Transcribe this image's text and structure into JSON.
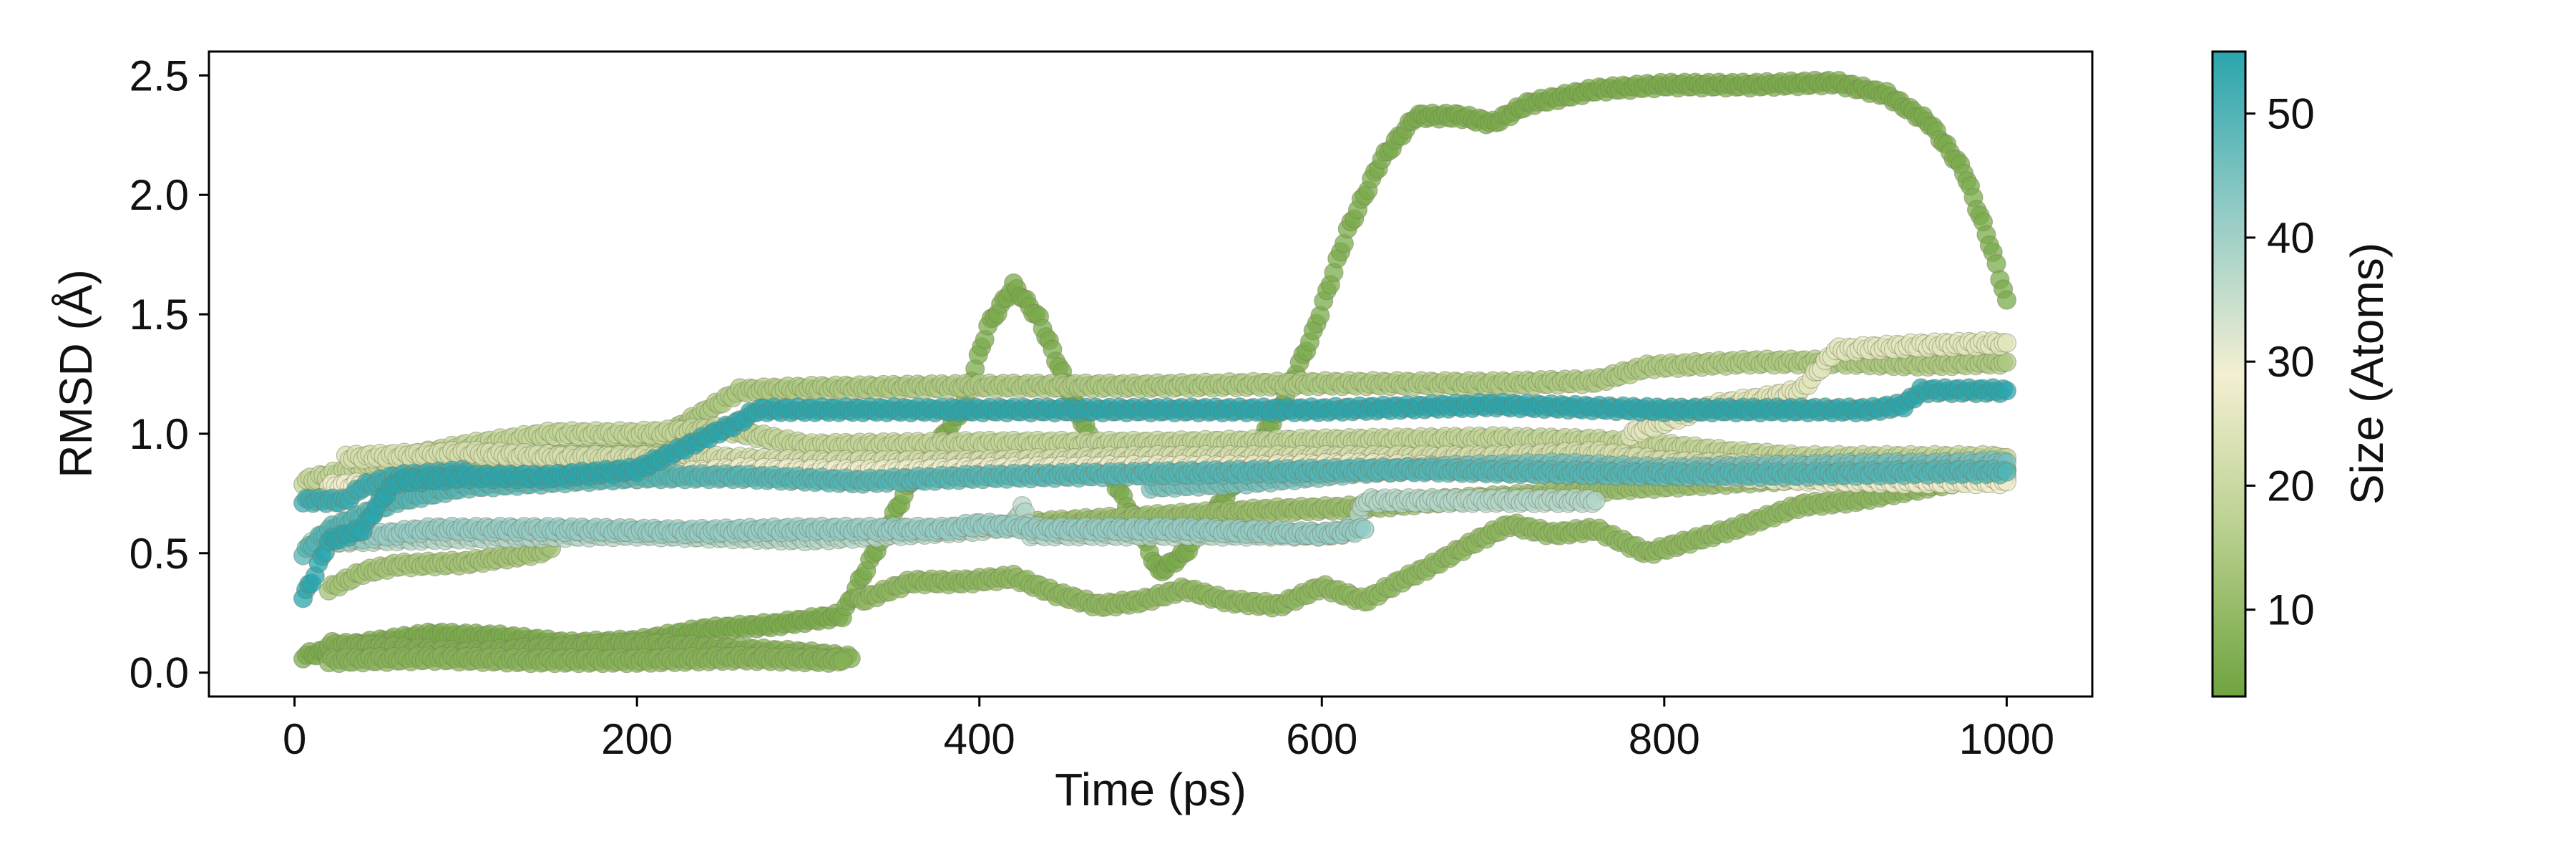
{
  "chart_data": {
    "type": "scatter",
    "xlabel": "Time (ps)",
    "ylabel": "RMSD (Å)",
    "xlim": [
      -50,
      1050
    ],
    "ylim": [
      -0.1,
      2.6
    ],
    "xticks": [
      0,
      200,
      400,
      600,
      800,
      1000
    ],
    "xtick_labels": [
      "0",
      "200",
      "400",
      "600",
      "800",
      "1000"
    ],
    "yticks": [
      0.0,
      0.5,
      1.0,
      1.5,
      2.0,
      2.5
    ],
    "ytick_labels": [
      "0.0",
      "0.5",
      "1.0",
      "1.5",
      "2.0",
      "2.5"
    ],
    "grid": false,
    "colorbar": {
      "label": "Size (Atoms)",
      "min": 3,
      "max": 55,
      "ticks": [
        10,
        20,
        30,
        40,
        50
      ],
      "tick_labels": [
        "10",
        "20",
        "30",
        "40",
        "50"
      ],
      "colors": [
        "#6fa43f",
        "#b7cf8c",
        "#f3efd2",
        "#93cbc5",
        "#2aa5ad"
      ]
    },
    "series": [
      {
        "size_atoms": 5,
        "points": [
          [
            5,
            0.07
          ],
          [
            40,
            0.12
          ],
          [
            80,
            0.16
          ],
          [
            120,
            0.15
          ],
          [
            160,
            0.12
          ],
          [
            200,
            0.13
          ],
          [
            240,
            0.18
          ],
          [
            280,
            0.2
          ],
          [
            320,
            0.24
          ],
          [
            330,
            0.38
          ],
          [
            360,
            0.8
          ],
          [
            390,
            1.1
          ],
          [
            405,
            1.45
          ],
          [
            420,
            1.62
          ],
          [
            435,
            1.48
          ],
          [
            460,
            1.05
          ],
          [
            490,
            0.65
          ],
          [
            505,
            0.42
          ],
          [
            520,
            0.5
          ],
          [
            550,
            0.8
          ],
          [
            575,
            1.1
          ],
          [
            595,
            1.42
          ],
          [
            615,
            1.85
          ],
          [
            635,
            2.15
          ],
          [
            655,
            2.33
          ],
          [
            680,
            2.33
          ],
          [
            700,
            2.3
          ],
          [
            720,
            2.38
          ],
          [
            760,
            2.44
          ],
          [
            800,
            2.46
          ],
          [
            850,
            2.46
          ],
          [
            900,
            2.47
          ],
          [
            930,
            2.42
          ],
          [
            955,
            2.3
          ],
          [
            975,
            2.1
          ],
          [
            990,
            1.8
          ],
          [
            1000,
            1.56
          ]
        ]
      },
      {
        "size_atoms": 6,
        "points": [
          [
            20,
            0.12
          ],
          [
            60,
            0.1
          ],
          [
            100,
            0.08
          ],
          [
            150,
            0.1
          ],
          [
            200,
            0.12
          ],
          [
            250,
            0.1
          ],
          [
            300,
            0.08
          ],
          [
            325,
            0.06
          ]
        ]
      },
      {
        "size_atoms": 7,
        "points": [
          [
            20,
            0.05
          ],
          [
            80,
            0.06
          ],
          [
            140,
            0.05
          ],
          [
            200,
            0.05
          ],
          [
            260,
            0.06
          ],
          [
            320,
            0.05
          ]
        ]
      },
      {
        "size_atoms": 8,
        "points": [
          [
            330,
            0.3
          ],
          [
            360,
            0.38
          ],
          [
            390,
            0.38
          ],
          [
            420,
            0.4
          ],
          [
            445,
            0.33
          ],
          [
            470,
            0.28
          ],
          [
            495,
            0.3
          ],
          [
            520,
            0.35
          ],
          [
            545,
            0.3
          ],
          [
            575,
            0.28
          ],
          [
            600,
            0.36
          ],
          [
            625,
            0.3
          ],
          [
            645,
            0.38
          ],
          [
            665,
            0.45
          ],
          [
            690,
            0.55
          ],
          [
            710,
            0.62
          ],
          [
            735,
            0.58
          ],
          [
            760,
            0.6
          ],
          [
            790,
            0.5
          ],
          [
            815,
            0.55
          ],
          [
            840,
            0.6
          ],
          [
            860,
            0.65
          ],
          [
            880,
            0.7
          ],
          [
            910,
            0.72
          ],
          [
            940,
            0.76
          ],
          [
            970,
            0.8
          ],
          [
            1000,
            0.85
          ]
        ]
      },
      {
        "size_atoms": 10,
        "points": [
          [
            420,
            0.62
          ],
          [
            470,
            0.64
          ],
          [
            520,
            0.66
          ],
          [
            570,
            0.68
          ],
          [
            620,
            0.69
          ],
          [
            670,
            0.72
          ],
          [
            720,
            0.74
          ],
          [
            770,
            0.77
          ],
          [
            820,
            0.79
          ],
          [
            870,
            0.81
          ],
          [
            920,
            0.83
          ],
          [
            960,
            0.85
          ],
          [
            1000,
            0.85
          ]
        ]
      },
      {
        "size_atoms": 12,
        "points": [
          [
            20,
            0.35
          ],
          [
            40,
            0.42
          ],
          [
            60,
            0.45
          ],
          [
            100,
            0.46
          ],
          [
            140,
            0.5
          ],
          [
            150,
            0.52
          ]
        ]
      },
      {
        "size_atoms": 14,
        "points": [
          [
            10,
            0.75
          ],
          [
            60,
            0.85
          ],
          [
            120,
            0.9
          ],
          [
            200,
            0.92
          ],
          [
            260,
            1.18
          ],
          [
            300,
            1.19
          ],
          [
            400,
            1.2
          ],
          [
            500,
            1.2
          ],
          [
            600,
            1.21
          ],
          [
            700,
            1.21
          ],
          [
            760,
            1.22
          ],
          [
            790,
            1.28
          ],
          [
            850,
            1.3
          ],
          [
            900,
            1.3
          ],
          [
            950,
            1.29
          ],
          [
            1000,
            1.3
          ]
        ]
      },
      {
        "size_atoms": 18,
        "points": [
          [
            5,
            0.8
          ],
          [
            50,
            0.88
          ],
          [
            100,
            0.95
          ],
          [
            150,
            1.0
          ],
          [
            200,
            1.0
          ],
          [
            250,
            1.02
          ],
          [
            300,
            0.95
          ],
          [
            400,
            0.96
          ],
          [
            500,
            0.96
          ],
          [
            600,
            0.97
          ],
          [
            700,
            0.98
          ],
          [
            760,
            0.97
          ],
          [
            800,
            0.95
          ],
          [
            840,
            0.92
          ],
          [
            880,
            0.9
          ],
          [
            940,
            0.9
          ],
          [
            1000,
            0.9
          ]
        ]
      },
      {
        "size_atoms": 22,
        "points": [
          [
            30,
            0.9
          ],
          [
            100,
            0.92
          ],
          [
            160,
            0.9
          ],
          [
            240,
            0.9
          ],
          [
            300,
            0.88
          ],
          [
            400,
            0.88
          ],
          [
            500,
            0.9
          ],
          [
            600,
            0.9
          ],
          [
            700,
            0.9
          ],
          [
            760,
            0.92
          ],
          [
            800,
            0.88
          ],
          [
            880,
            0.86
          ],
          [
            940,
            0.84
          ],
          [
            1000,
            0.82
          ]
        ]
      },
      {
        "size_atoms": 25,
        "points": [
          [
            780,
            1.0
          ],
          [
            800,
            1.05
          ],
          [
            830,
            1.12
          ],
          [
            860,
            1.15
          ],
          [
            880,
            1.18
          ],
          [
            900,
            1.35
          ],
          [
            950,
            1.37
          ],
          [
            1000,
            1.38
          ]
        ]
      },
      {
        "size_atoms": 28,
        "points": [
          [
            20,
            0.78
          ],
          [
            80,
            0.8
          ],
          [
            150,
            0.82
          ],
          [
            200,
            0.82
          ],
          [
            260,
            0.85
          ],
          [
            330,
            0.84
          ],
          [
            400,
            0.85
          ],
          [
            500,
            0.86
          ],
          [
            560,
            0.86
          ],
          [
            620,
            0.87
          ],
          [
            700,
            0.85
          ],
          [
            760,
            0.84
          ],
          [
            820,
            0.83
          ],
          [
            880,
            0.81
          ],
          [
            940,
            0.8
          ],
          [
            1000,
            0.8
          ]
        ]
      },
      {
        "size_atoms": 38,
        "points": [
          [
            10,
            0.55
          ],
          [
            60,
            0.56
          ],
          [
            120,
            0.57
          ],
          [
            200,
            0.58
          ],
          [
            300,
            0.56
          ],
          [
            400,
            0.6
          ],
          [
            420,
            0.62
          ],
          [
            425,
            0.7
          ],
          [
            430,
            0.58
          ],
          [
            500,
            0.58
          ],
          [
            560,
            0.58
          ],
          [
            610,
            0.58
          ],
          [
            620,
            0.62
          ],
          [
            625,
            0.72
          ],
          [
            700,
            0.72
          ],
          [
            760,
            0.72
          ]
        ]
      },
      {
        "size_atoms": 42,
        "points": [
          [
            20,
            0.55
          ],
          [
            80,
            0.6
          ],
          [
            150,
            0.6
          ],
          [
            230,
            0.59
          ],
          [
            300,
            0.6
          ],
          [
            380,
            0.6
          ],
          [
            400,
            0.62
          ],
          [
            440,
            0.6
          ],
          [
            520,
            0.6
          ],
          [
            600,
            0.58
          ],
          [
            625,
            0.6
          ]
        ]
      },
      {
        "size_atoms": 46,
        "points": [
          [
            500,
            0.78
          ],
          [
            560,
            0.8
          ],
          [
            620,
            0.84
          ],
          [
            680,
            0.86
          ],
          [
            740,
            0.87
          ],
          [
            800,
            0.85
          ],
          [
            860,
            0.86
          ],
          [
            920,
            0.87
          ],
          [
            960,
            0.87
          ],
          [
            1000,
            0.88
          ]
        ]
      },
      {
        "size_atoms": 50,
        "points": [
          [
            5,
            0.5
          ],
          [
            20,
            0.6
          ],
          [
            60,
            0.72
          ],
          [
            100,
            0.78
          ],
          [
            150,
            0.8
          ],
          [
            200,
            0.82
          ],
          [
            260,
            0.82
          ],
          [
            330,
            0.8
          ],
          [
            400,
            0.82
          ],
          [
            480,
            0.83
          ],
          [
            560,
            0.84
          ],
          [
            640,
            0.85
          ],
          [
            720,
            0.84
          ],
          [
            800,
            0.83
          ],
          [
            880,
            0.83
          ],
          [
            960,
            0.84
          ],
          [
            1000,
            0.84
          ]
        ]
      },
      {
        "size_atoms": 55,
        "points": [
          [
            5,
            0.32
          ],
          [
            10,
            0.38
          ],
          [
            20,
            0.55
          ],
          [
            40,
            0.6
          ],
          [
            50,
            0.72
          ],
          [
            60,
            0.8
          ],
          [
            100,
            0.82
          ],
          [
            150,
            0.82
          ],
          [
            200,
            0.85
          ],
          [
            230,
            0.95
          ],
          [
            260,
            1.05
          ],
          [
            270,
            1.1
          ],
          [
            300,
            1.1
          ],
          [
            400,
            1.1
          ],
          [
            500,
            1.1
          ],
          [
            600,
            1.1
          ],
          [
            700,
            1.12
          ],
          [
            800,
            1.1
          ],
          [
            880,
            1.1
          ],
          [
            920,
            1.1
          ],
          [
            940,
            1.12
          ],
          [
            950,
            1.18
          ],
          [
            1000,
            1.18
          ]
        ]
      },
      {
        "size_atoms": 53,
        "points": [
          [
            5,
            0.72
          ],
          [
            30,
            0.72
          ],
          [
            40,
            0.78
          ],
          [
            60,
            0.82
          ],
          [
            100,
            0.84
          ]
        ]
      }
    ]
  }
}
